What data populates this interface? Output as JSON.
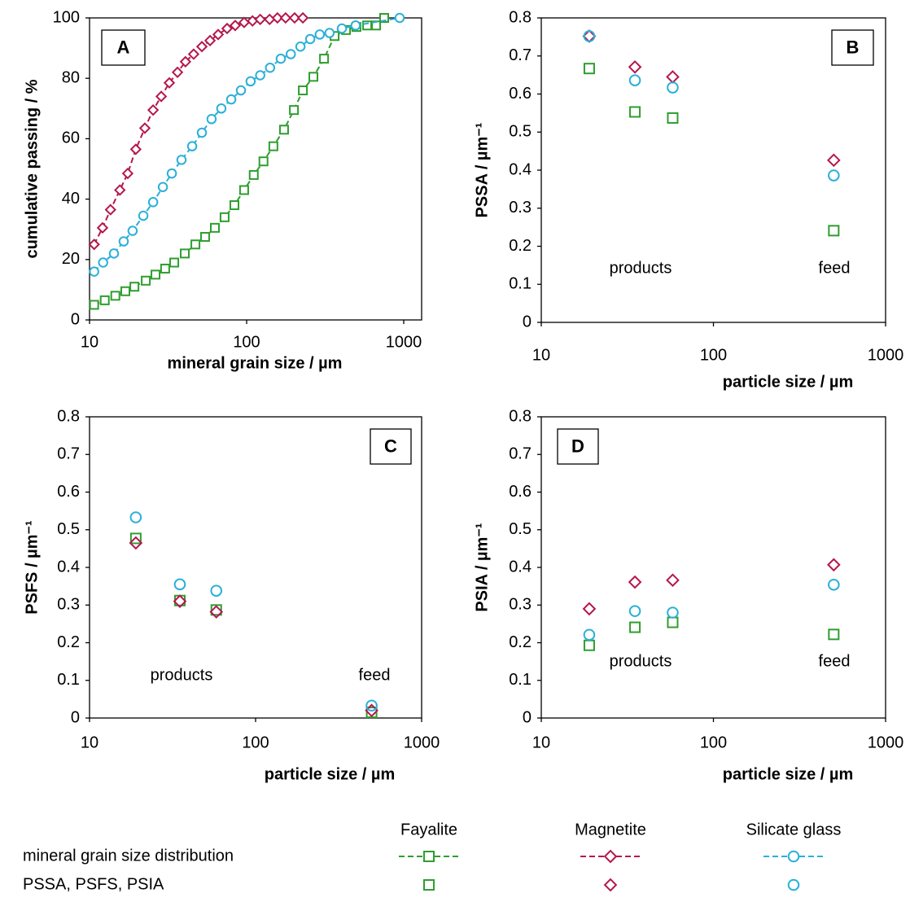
{
  "chart_data": [
    {
      "type": "line",
      "label": "A",
      "xlabel": "mineral grain size / µm",
      "ylabel": "cumulative passing / %",
      "log_x": true,
      "xlim": [
        10,
        1300
      ],
      "xticks": [
        10,
        100,
        1000
      ],
      "ylim": [
        0,
        100
      ],
      "yticks": [
        0,
        20,
        40,
        60,
        80,
        100
      ],
      "series": [
        {
          "name": "Fayalite",
          "color": "#2f9e2f",
          "marker": "square",
          "x": [
            10.7,
            12.5,
            14.6,
            16.9,
            19.3,
            22.8,
            26.3,
            30.3,
            34.6,
            40.4,
            47.2,
            54.4,
            62.8,
            72.4,
            83.6,
            96.4,
            111,
            128,
            148,
            173,
            200,
            228,
            266,
            311,
            363,
            429,
            500,
            585,
            667,
            751
          ],
          "values": [
            5,
            6.5,
            8,
            9.5,
            11,
            13,
            15,
            17,
            19,
            22,
            25,
            27.5,
            30.5,
            34,
            38,
            43,
            48,
            52.5,
            57.5,
            63,
            69.5,
            76,
            80.5,
            86.5,
            94,
            96,
            97,
            97.5,
            97.5,
            100
          ]
        },
        {
          "name": "Magnetite",
          "color": "#b5174e",
          "marker": "diamond",
          "x": [
            10.7,
            12.1,
            13.6,
            15.6,
            17.5,
            19.7,
            22.5,
            25.4,
            28.6,
            32.2,
            36.3,
            40.8,
            46.0,
            51.9,
            58.5,
            65.9,
            75.1,
            84.6,
            96.4,
            109,
            122,
            140,
            157,
            177,
            202,
            228
          ],
          "values": [
            25,
            30.5,
            36.5,
            43,
            48.5,
            56.5,
            63.5,
            69.5,
            74,
            78.5,
            82,
            85.5,
            88,
            90.5,
            92.5,
            94.5,
            96.5,
            97.5,
            98.5,
            99,
            99.5,
            99.5,
            100,
            100,
            100,
            100
          ]
        },
        {
          "name": "Silicate glass",
          "color": "#2ab0d8",
          "marker": "circle",
          "x": [
            10.7,
            12.2,
            14.3,
            16.5,
            18.8,
            22.0,
            25.4,
            29.3,
            33.4,
            38.5,
            45.0,
            51.9,
            59.8,
            69.0,
            79.8,
            92.0,
            106,
            122,
            141,
            165,
            191,
            220,
            254,
            292,
            337,
            404,
            494,
            942
          ],
          "values": [
            16,
            19,
            22,
            26,
            29.5,
            34.5,
            39,
            44,
            48.5,
            53,
            57.5,
            62,
            66.5,
            70,
            73,
            76,
            79,
            81,
            83.5,
            86.5,
            88,
            90.5,
            93,
            94.5,
            95,
            96.5,
            97.5,
            100
          ]
        }
      ]
    },
    {
      "type": "scatter",
      "label": "B",
      "xlabel": "particle size / µm",
      "ylabel": "PSSA / µm⁻¹",
      "log_x": true,
      "annotations": [
        "products",
        "feed"
      ],
      "xlim": [
        10,
        1000
      ],
      "xticks": [
        10,
        100,
        1000
      ],
      "ylim": [
        0,
        0.8
      ],
      "yticks": [
        0,
        0.1,
        0.2,
        0.3,
        0.4,
        0.5,
        0.6,
        0.7,
        0.8
      ],
      "x": [
        19,
        35,
        58,
        500
      ],
      "series": [
        {
          "name": "Fayalite",
          "color": "#2f9e2f",
          "marker": "square",
          "values": [
            0.667,
            0.553,
            0.537,
            0.241
          ]
        },
        {
          "name": "Magnetite",
          "color": "#b5174e",
          "marker": "diamond",
          "values": [
            0.752,
            0.671,
            0.645,
            0.426
          ]
        },
        {
          "name": "Silicate glass",
          "color": "#2ab0d8",
          "marker": "circle",
          "values": [
            0.752,
            0.636,
            0.617,
            0.386
          ]
        }
      ]
    },
    {
      "type": "scatter",
      "label": "C",
      "xlabel": "particle size / µm",
      "ylabel": "PSFS / µm⁻¹",
      "log_x": true,
      "annotations": [
        "products",
        "feed"
      ],
      "xlim": [
        10,
        1000
      ],
      "xticks": [
        10,
        100,
        1000
      ],
      "ylim": [
        0,
        0.8
      ],
      "yticks": [
        0,
        0.1,
        0.2,
        0.3,
        0.4,
        0.5,
        0.6,
        0.7,
        0.8
      ],
      "x": [
        19,
        35,
        58,
        500
      ],
      "series": [
        {
          "name": "Fayalite",
          "color": "#2f9e2f",
          "marker": "square",
          "values": [
            0.477,
            0.312,
            0.287,
            0.015
          ]
        },
        {
          "name": "Magnetite",
          "color": "#b5174e",
          "marker": "diamond",
          "values": [
            0.465,
            0.31,
            0.282,
            0.02
          ]
        },
        {
          "name": "Silicate glass",
          "color": "#2ab0d8",
          "marker": "circle",
          "values": [
            0.533,
            0.355,
            0.338,
            0.033
          ]
        }
      ]
    },
    {
      "type": "scatter",
      "label": "D",
      "xlabel": "particle size / µm",
      "ylabel": "PSIA / µm⁻¹",
      "log_x": true,
      "annotations": [
        "products",
        "feed"
      ],
      "xlim": [
        10,
        1000
      ],
      "xticks": [
        10,
        100,
        1000
      ],
      "ylim": [
        0,
        0.8
      ],
      "yticks": [
        0,
        0.1,
        0.2,
        0.3,
        0.4,
        0.5,
        0.6,
        0.7,
        0.8
      ],
      "x": [
        19,
        35,
        58,
        500
      ],
      "series": [
        {
          "name": "Fayalite",
          "color": "#2f9e2f",
          "marker": "square",
          "values": [
            0.193,
            0.241,
            0.254,
            0.222
          ]
        },
        {
          "name": "Magnetite",
          "color": "#b5174e",
          "marker": "diamond",
          "values": [
            0.29,
            0.361,
            0.366,
            0.407
          ]
        },
        {
          "name": "Silicate glass",
          "color": "#2ab0d8",
          "marker": "circle",
          "values": [
            0.221,
            0.284,
            0.28,
            0.354
          ]
        }
      ]
    }
  ],
  "legend": {
    "rows": [
      "mineral grain size distribution",
      "PSSA, PSFS, PSIA"
    ]
  }
}
